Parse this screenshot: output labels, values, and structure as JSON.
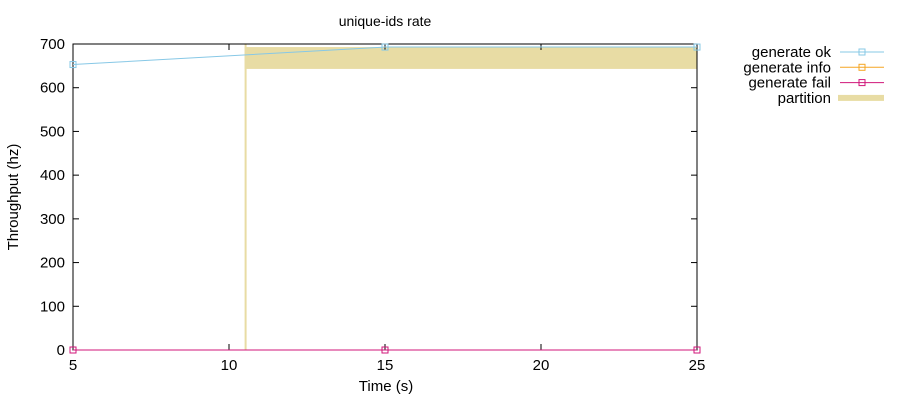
{
  "chart_data": {
    "type": "line",
    "title": "unique-ids rate",
    "xlabel": "Time (s)",
    "ylabel": "Throughput (hz)",
    "xlim": [
      5,
      25
    ],
    "ylim": [
      0,
      700
    ],
    "xticks": [
      5,
      10,
      15,
      20,
      25
    ],
    "yticks": [
      0,
      100,
      200,
      300,
      400,
      500,
      600,
      700
    ],
    "grid": false,
    "legend_position": "outside-right",
    "series": [
      {
        "name": "generate ok",
        "color": "#87c8e6",
        "marker": "square",
        "x": [
          5,
          15,
          25
        ],
        "y": [
          653,
          693,
          693
        ]
      },
      {
        "name": "generate info",
        "color": "#f5a623",
        "marker": "square",
        "x": [],
        "y": []
      },
      {
        "name": "generate fail",
        "color": "#d0167a",
        "marker": "square",
        "x": [
          5,
          15,
          25
        ],
        "y": [
          0,
          0,
          0
        ]
      }
    ],
    "partition": {
      "name": "partition",
      "color": "#e8dca4",
      "start": 10.5,
      "end": 25,
      "band_y": [
        643,
        693
      ]
    }
  }
}
